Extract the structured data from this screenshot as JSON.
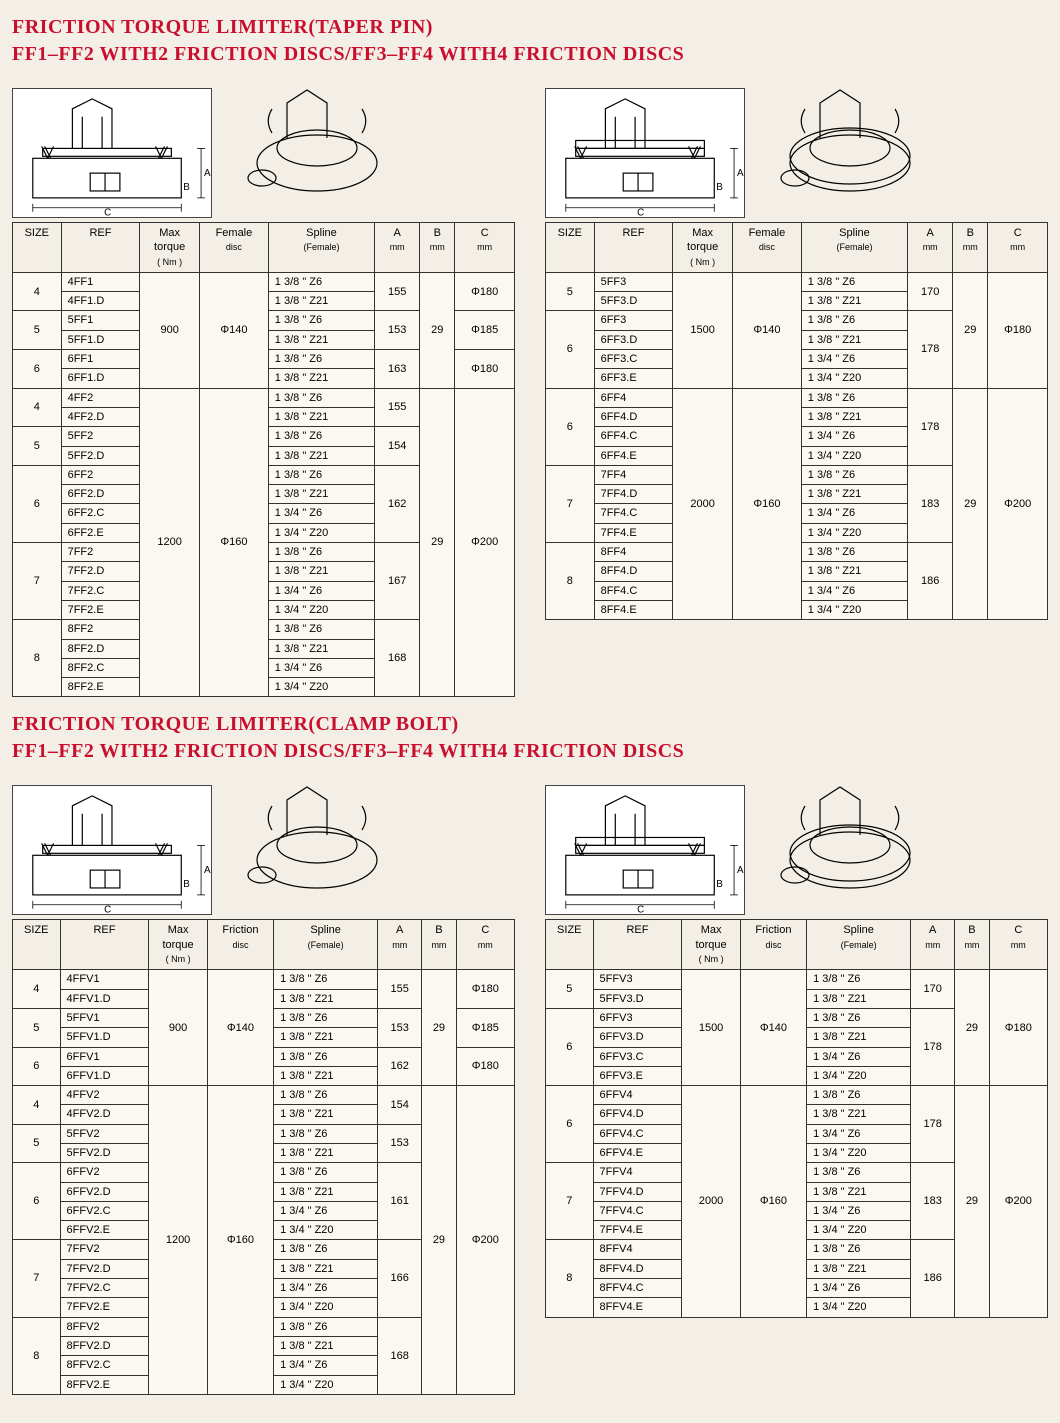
{
  "colors": {
    "accent": "#c8102e",
    "border": "#333333",
    "bg": "#f4efe6"
  },
  "sections": [
    {
      "title1": "FRICTION TORQUE LIMITER(TAPER PIN)",
      "title2": "FF1–FF2 WITH2 FRICTION DISCS/FF3–FF4 WITH4 FRICTION DISCS",
      "left": {
        "columns": [
          "SIZE",
          "REF",
          "Max\ntorque\n( Nm )",
          "Female\ndisc",
          "Spline\n(Female)",
          "A\nmm",
          "B\nmm",
          "C\nmm"
        ],
        "groups": [
          {
            "torque": "900",
            "disc": "Φ140",
            "b": "29",
            "subs": [
              {
                "size": "4",
                "a": "155",
                "c": "Φ180",
                "rows": [
                  {
                    "ref": "4FF1",
                    "spl": "1 3/8 \" Z6"
                  },
                  {
                    "ref": "4FF1.D",
                    "spl": "1 3/8 \" Z21"
                  }
                ]
              },
              {
                "size": "5",
                "a": "153",
                "c": "Φ185",
                "rows": [
                  {
                    "ref": "5FF1",
                    "spl": "1 3/8 \" Z6"
                  },
                  {
                    "ref": "5FF1.D",
                    "spl": "1 3/8 \" Z21"
                  }
                ]
              },
              {
                "size": "6",
                "a": "163",
                "c": "Φ180",
                "rows": [
                  {
                    "ref": "6FF1",
                    "spl": "1 3/8 \" Z6"
                  },
                  {
                    "ref": "6FF1.D",
                    "spl": "1 3/8 \" Z21"
                  }
                ]
              }
            ]
          },
          {
            "torque": "1200",
            "disc": "Φ160",
            "b": "29",
            "c_group": "Φ200",
            "subs": [
              {
                "size": "4",
                "a": "155",
                "rows": [
                  {
                    "ref": "4FF2",
                    "spl": "1 3/8 \" Z6"
                  },
                  {
                    "ref": "4FF2.D",
                    "spl": "1 3/8 \" Z21"
                  }
                ]
              },
              {
                "size": "5",
                "a": "154",
                "rows": [
                  {
                    "ref": "5FF2",
                    "spl": "1 3/8 \" Z6"
                  },
                  {
                    "ref": "5FF2.D",
                    "spl": "1 3/8 \" Z21"
                  }
                ]
              },
              {
                "size": "6",
                "a": "162",
                "rows": [
                  {
                    "ref": "6FF2",
                    "spl": "1 3/8 \" Z6"
                  },
                  {
                    "ref": "6FF2.D",
                    "spl": "1 3/8 \" Z21"
                  },
                  {
                    "ref": "6FF2.C",
                    "spl": "1 3/4 \" Z6"
                  },
                  {
                    "ref": "6FF2.E",
                    "spl": "1 3/4 \" Z20"
                  }
                ]
              },
              {
                "size": "7",
                "a": "167",
                "rows": [
                  {
                    "ref": "7FF2",
                    "spl": "1 3/8 \" Z6"
                  },
                  {
                    "ref": "7FF2.D",
                    "spl": "1 3/8 \" Z21"
                  },
                  {
                    "ref": "7FF2.C",
                    "spl": "1 3/4 \" Z6"
                  },
                  {
                    "ref": "7FF2.E",
                    "spl": "1 3/4 \" Z20"
                  }
                ]
              },
              {
                "size": "8",
                "a": "168",
                "rows": [
                  {
                    "ref": "8FF2",
                    "spl": "1 3/8 \" Z6"
                  },
                  {
                    "ref": "8FF2.D",
                    "spl": "1 3/8 \" Z21"
                  },
                  {
                    "ref": "8FF2.C",
                    "spl": "1 3/4 \" Z6"
                  },
                  {
                    "ref": "8FF2.E",
                    "spl": "1 3/4 \" Z20"
                  }
                ]
              }
            ]
          }
        ]
      },
      "right": {
        "columns": [
          "SIZE",
          "REF",
          "Max\ntorque\n( Nm )",
          "Female\ndisc",
          "Spline\n(Female)",
          "A\nmm",
          "B\nmm",
          "C\nmm"
        ],
        "groups": [
          {
            "torque": "1500",
            "disc": "Φ140",
            "b": "29",
            "c_group": "Φ180",
            "subs": [
              {
                "size": "5",
                "a": "170",
                "rows": [
                  {
                    "ref": "5FF3",
                    "spl": "1 3/8 \" Z6"
                  },
                  {
                    "ref": "5FF3.D",
                    "spl": "1 3/8 \" Z21"
                  }
                ]
              },
              {
                "size": "6",
                "a": "178",
                "rows": [
                  {
                    "ref": "6FF3",
                    "spl": "1 3/8 \" Z6"
                  },
                  {
                    "ref": "6FF3.D",
                    "spl": "1 3/8 \" Z21"
                  },
                  {
                    "ref": "6FF3.C",
                    "spl": "1 3/4 \" Z6"
                  },
                  {
                    "ref": "6FF3.E",
                    "spl": "1 3/4 \" Z20"
                  }
                ]
              }
            ]
          },
          {
            "torque": "2000",
            "disc": "Φ160",
            "b": "29",
            "c_group": "Φ200",
            "subs": [
              {
                "size": "6",
                "a": "178",
                "rows": [
                  {
                    "ref": "6FF4",
                    "spl": "1 3/8 \" Z6"
                  },
                  {
                    "ref": "6FF4.D",
                    "spl": "1 3/8 \" Z21"
                  },
                  {
                    "ref": "6FF4.C",
                    "spl": "1 3/4 \" Z6"
                  },
                  {
                    "ref": "6FF4.E",
                    "spl": "1 3/4 \" Z20"
                  }
                ]
              },
              {
                "size": "7",
                "a": "183",
                "rows": [
                  {
                    "ref": "7FF4",
                    "spl": "1 3/8 \" Z6"
                  },
                  {
                    "ref": "7FF4.D",
                    "spl": "1 3/8 \" Z21"
                  },
                  {
                    "ref": "7FF4.C",
                    "spl": "1 3/4 \" Z6"
                  },
                  {
                    "ref": "7FF4.E",
                    "spl": "1 3/4 \" Z20"
                  }
                ]
              },
              {
                "size": "8",
                "a": "186",
                "rows": [
                  {
                    "ref": "8FF4",
                    "spl": "1 3/8 \" Z6"
                  },
                  {
                    "ref": "8FF4.D",
                    "spl": "1 3/8 \" Z21"
                  },
                  {
                    "ref": "8FF4.C",
                    "spl": "1 3/4 \" Z6"
                  },
                  {
                    "ref": "8FF4.E",
                    "spl": "1 3/4 \" Z20"
                  }
                ]
              }
            ]
          }
        ]
      }
    },
    {
      "title1": "FRICTION TORQUE LIMITER(CLAMP BOLT)",
      "title2": "FF1–FF2 WITH2 FRICTION DISCS/FF3–FF4 WITH4 FRICTION DISCS",
      "left": {
        "columns": [
          "SIZE",
          "REF",
          "Max\ntorque\n( Nm )",
          "Friction\ndisc",
          "Spline\n(Female)",
          "A\nmm",
          "B\nmm",
          "C\nmm"
        ],
        "groups": [
          {
            "torque": "900",
            "disc": "Φ140",
            "b": "29",
            "subs": [
              {
                "size": "4",
                "a": "155",
                "c": "Φ180",
                "rows": [
                  {
                    "ref": "4FFV1",
                    "spl": "1 3/8 \" Z6"
                  },
                  {
                    "ref": "4FFV1.D",
                    "spl": "1 3/8 \" Z21"
                  }
                ]
              },
              {
                "size": "5",
                "a": "153",
                "c": "Φ185",
                "rows": [
                  {
                    "ref": "5FFV1",
                    "spl": "1 3/8 \" Z6"
                  },
                  {
                    "ref": "5FFV1.D",
                    "spl": "1 3/8 \" Z21"
                  }
                ]
              },
              {
                "size": "6",
                "a": "162",
                "c": "Φ180",
                "rows": [
                  {
                    "ref": "6FFV1",
                    "spl": "1 3/8 \" Z6"
                  },
                  {
                    "ref": "6FFV1.D",
                    "spl": "1 3/8 \" Z21"
                  }
                ]
              }
            ]
          },
          {
            "torque": "1200",
            "disc": "Φ160",
            "b": "29",
            "c_group": "Φ200",
            "subs": [
              {
                "size": "4",
                "a": "154",
                "rows": [
                  {
                    "ref": "4FFV2",
                    "spl": "1 3/8 \" Z6"
                  },
                  {
                    "ref": "4FFV2.D",
                    "spl": "1 3/8 \" Z21"
                  }
                ]
              },
              {
                "size": "5",
                "a": "153",
                "rows": [
                  {
                    "ref": "5FFV2",
                    "spl": "1 3/8 \" Z6"
                  },
                  {
                    "ref": "5FFV2.D",
                    "spl": "1 3/8 \" Z21"
                  }
                ]
              },
              {
                "size": "6",
                "a": "161",
                "rows": [
                  {
                    "ref": "6FFV2",
                    "spl": "1 3/8 \" Z6"
                  },
                  {
                    "ref": "6FFV2.D",
                    "spl": "1 3/8 \" Z21"
                  },
                  {
                    "ref": "6FFV2.C",
                    "spl": "1 3/4 \" Z6"
                  },
                  {
                    "ref": "6FFV2.E",
                    "spl": "1 3/4 \" Z20"
                  }
                ]
              },
              {
                "size": "7",
                "a": "166",
                "rows": [
                  {
                    "ref": "7FFV2",
                    "spl": "1 3/8 \" Z6"
                  },
                  {
                    "ref": "7FFV2.D",
                    "spl": "1 3/8 \" Z21"
                  },
                  {
                    "ref": "7FFV2.C",
                    "spl": "1 3/4 \" Z6"
                  },
                  {
                    "ref": "7FFV2.E",
                    "spl": "1 3/4 \" Z20"
                  }
                ]
              },
              {
                "size": "8",
                "a": "168",
                "rows": [
                  {
                    "ref": "8FFV2",
                    "spl": "1 3/8 \" Z6"
                  },
                  {
                    "ref": "8FFV2.D",
                    "spl": "1 3/8 \" Z21"
                  },
                  {
                    "ref": "8FFV2.C",
                    "spl": "1 3/4 \" Z6"
                  },
                  {
                    "ref": "8FFV2.E",
                    "spl": "1 3/4 \" Z20"
                  }
                ]
              }
            ]
          }
        ]
      },
      "right": {
        "columns": [
          "SIZE",
          "REF",
          "Max\ntorque\n( Nm )",
          "Friction\ndisc",
          "Spline\n(Female)",
          "A\nmm",
          "B\nmm",
          "C\nmm"
        ],
        "groups": [
          {
            "torque": "1500",
            "disc": "Φ140",
            "b": "29",
            "c_group": "Φ180",
            "subs": [
              {
                "size": "5",
                "a": "170",
                "rows": [
                  {
                    "ref": "5FFV3",
                    "spl": "1 3/8 \" Z6"
                  },
                  {
                    "ref": "5FFV3.D",
                    "spl": "1 3/8 \" Z21"
                  }
                ]
              },
              {
                "size": "6",
                "a": "178",
                "rows": [
                  {
                    "ref": "6FFV3",
                    "spl": "1 3/8 \" Z6"
                  },
                  {
                    "ref": "6FFV3.D",
                    "spl": "1 3/8 \" Z21"
                  },
                  {
                    "ref": "6FFV3.C",
                    "spl": "1 3/4 \" Z6"
                  },
                  {
                    "ref": "6FFV3.E",
                    "spl": "1 3/4 \" Z20"
                  }
                ]
              }
            ]
          },
          {
            "torque": "2000",
            "disc": "Φ160",
            "b": "29",
            "c_group": "Φ200",
            "subs": [
              {
                "size": "6",
                "a": "178",
                "rows": [
                  {
                    "ref": "6FFV4",
                    "spl": "1 3/8 \" Z6"
                  },
                  {
                    "ref": "6FFV4.D",
                    "spl": "1 3/8 \" Z21"
                  },
                  {
                    "ref": "6FFV4.C",
                    "spl": "1 3/4 \" Z6"
                  },
                  {
                    "ref": "6FFV4.E",
                    "spl": "1 3/4 \" Z20"
                  }
                ]
              },
              {
                "size": "7",
                "a": "183",
                "rows": [
                  {
                    "ref": "7FFV4",
                    "spl": "1 3/8 \" Z6"
                  },
                  {
                    "ref": "7FFV4.D",
                    "spl": "1 3/8 \" Z21"
                  },
                  {
                    "ref": "7FFV4.C",
                    "spl": "1 3/4 \" Z6"
                  },
                  {
                    "ref": "7FFV4.E",
                    "spl": "1 3/4 \" Z20"
                  }
                ]
              },
              {
                "size": "8",
                "a": "186",
                "rows": [
                  {
                    "ref": "8FFV4",
                    "spl": "1 3/8 \" Z6"
                  },
                  {
                    "ref": "8FFV4.D",
                    "spl": "1 3/8 \" Z21"
                  },
                  {
                    "ref": "8FFV4.C",
                    "spl": "1 3/4 \" Z6"
                  },
                  {
                    "ref": "8FFV4.E",
                    "spl": "1 3/4 \" Z20"
                  }
                ]
              }
            ]
          }
        ]
      }
    }
  ],
  "dim_labels": {
    "a": "A",
    "b": "B",
    "c": "C"
  }
}
